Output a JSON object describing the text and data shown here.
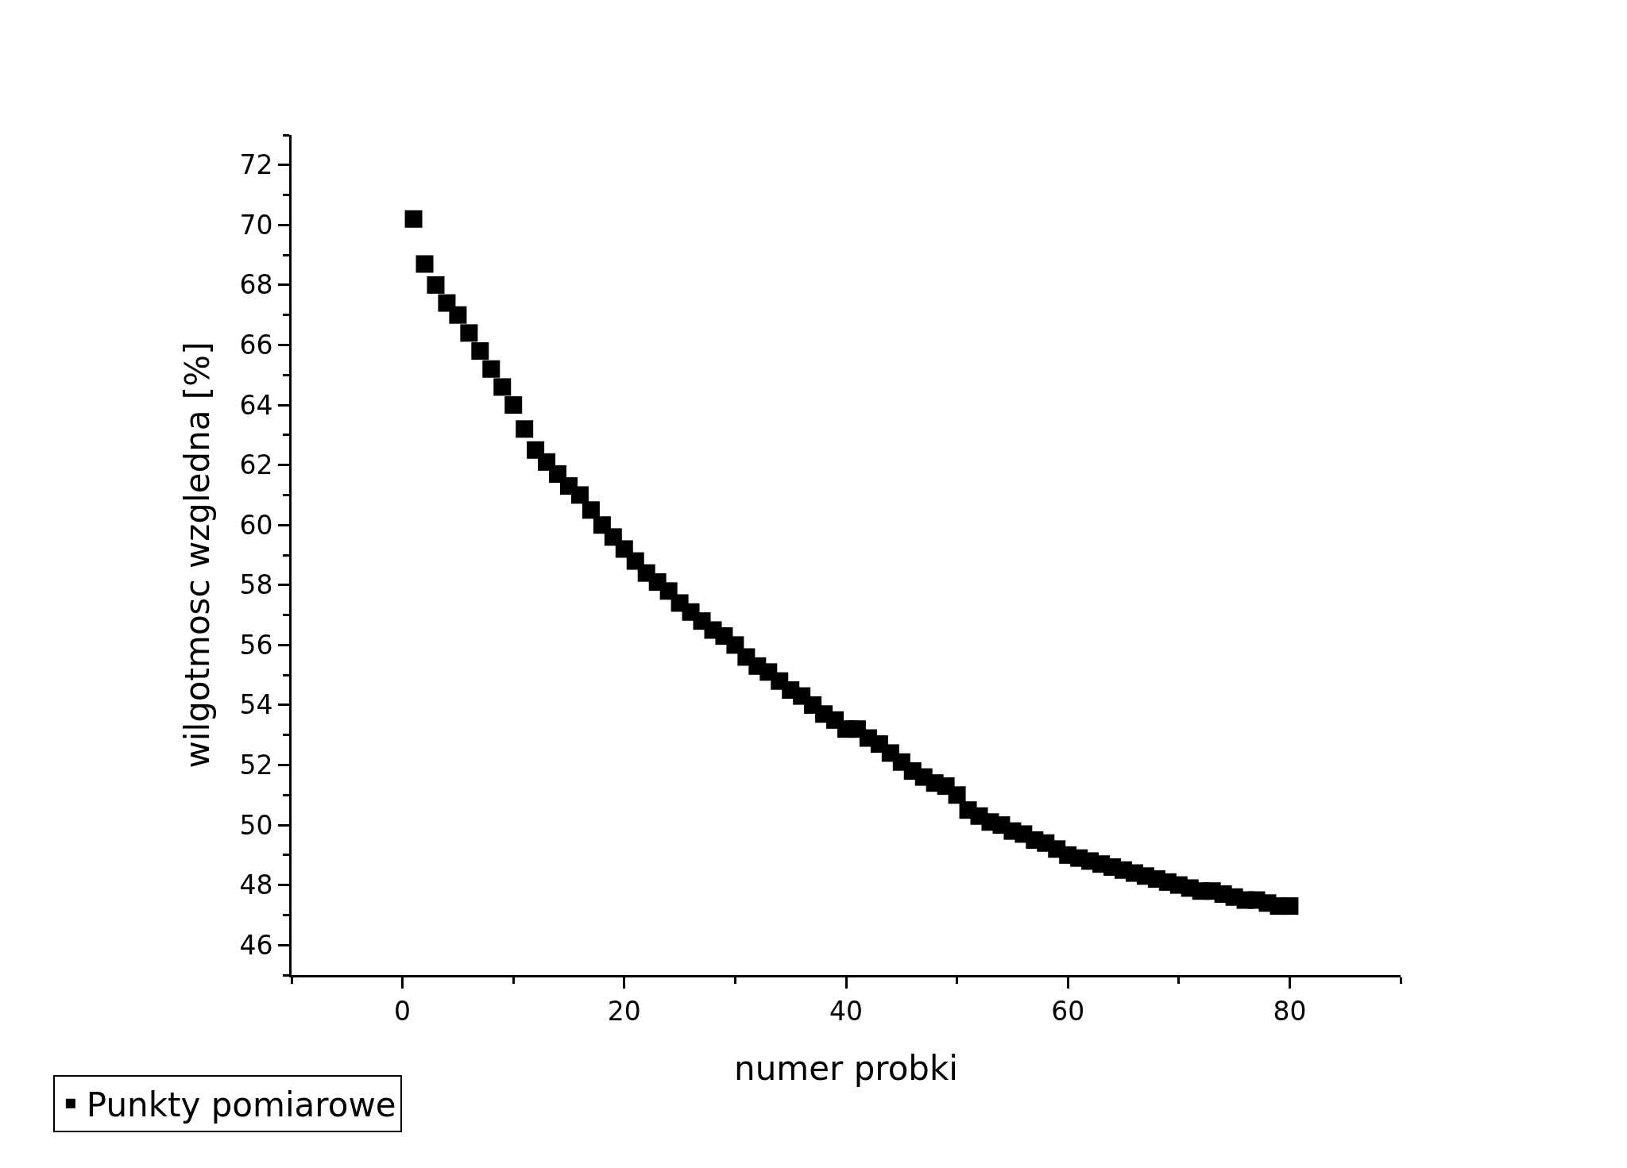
{
  "chart_data": {
    "type": "scatter",
    "xlabel": "numer probki",
    "ylabel": "wilgotmosc wzgledna [%]",
    "x": [
      1,
      2,
      3,
      4,
      5,
      6,
      7,
      8,
      9,
      10,
      11,
      12,
      13,
      14,
      15,
      16,
      17,
      18,
      19,
      20,
      21,
      22,
      23,
      24,
      25,
      26,
      27,
      28,
      29,
      30,
      31,
      32,
      33,
      34,
      35,
      36,
      37,
      38,
      39,
      40,
      41,
      42,
      43,
      44,
      45,
      46,
      47,
      48,
      49,
      50,
      51,
      52,
      53,
      54,
      55,
      56,
      57,
      58,
      59,
      60,
      61,
      62,
      63,
      64,
      65,
      66,
      67,
      68,
      69,
      70,
      71,
      72,
      73,
      74,
      75,
      76,
      77,
      78,
      79,
      80
    ],
    "series": [
      {
        "name": "Punkty pomiarowe",
        "color": "#000000",
        "values": [
          70.2,
          68.7,
          68.0,
          67.4,
          67.0,
          66.4,
          65.8,
          65.2,
          64.6,
          64.0,
          63.2,
          62.5,
          62.1,
          61.7,
          61.3,
          61.0,
          60.5,
          60.0,
          59.6,
          59.2,
          58.8,
          58.4,
          58.1,
          57.8,
          57.4,
          57.1,
          56.8,
          56.5,
          56.3,
          56.0,
          55.6,
          55.3,
          55.1,
          54.8,
          54.5,
          54.3,
          54.0,
          53.7,
          53.5,
          53.2,
          53.2,
          52.9,
          52.7,
          52.4,
          52.1,
          51.8,
          51.6,
          51.4,
          51.3,
          51.0,
          50.5,
          50.3,
          50.1,
          50.0,
          49.8,
          49.7,
          49.5,
          49.4,
          49.2,
          49.0,
          48.9,
          48.8,
          48.7,
          48.6,
          48.5,
          48.4,
          48.3,
          48.2,
          48.1,
          48.0,
          47.9,
          47.8,
          47.8,
          47.7,
          47.6,
          47.5,
          47.5,
          47.4,
          47.3,
          47.3
        ]
      }
    ],
    "xlim": [
      -10,
      90
    ],
    "xticks": [
      {
        "value": -10,
        "label": null
      },
      0,
      {
        "value": 10,
        "label": null
      },
      20,
      {
        "value": 30,
        "label": null
      },
      40,
      {
        "value": 50,
        "label": null
      },
      60,
      {
        "value": 70,
        "label": null
      },
      80,
      {
        "value": 90,
        "label": null
      }
    ],
    "ylim": [
      45,
      73
    ],
    "yticks": [
      {
        "value": 45,
        "label": null
      },
      46,
      {
        "value": 47,
        "label": null
      },
      48,
      {
        "value": 49,
        "label": null
      },
      50,
      {
        "value": 51,
        "label": null
      },
      52,
      {
        "value": 53,
        "label": null
      },
      54,
      {
        "value": 55,
        "label": null
      },
      56,
      {
        "value": 57,
        "label": null
      },
      58,
      {
        "value": 59,
        "label": null
      },
      60,
      {
        "value": 61,
        "label": null
      },
      62,
      {
        "value": 63,
        "label": null
      },
      64,
      {
        "value": 65,
        "label": null
      },
      66,
      {
        "value": 67,
        "label": null
      },
      68,
      {
        "value": 69,
        "label": null
      },
      70,
      {
        "value": 71,
        "label": null
      },
      72,
      {
        "value": 73,
        "label": null
      }
    ],
    "marker": "square",
    "legend": "bottom left"
  }
}
